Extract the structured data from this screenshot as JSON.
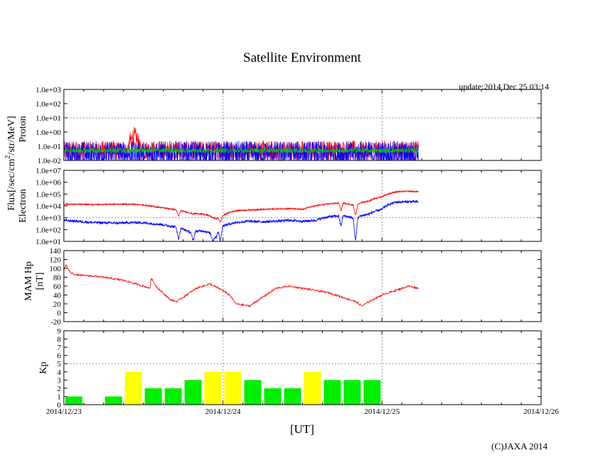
{
  "title": "Satellite Environment",
  "update": "update:2014 Dec 25 03:14",
  "copyright": "(C)JAXA 2014",
  "xlabel": "[UT]",
  "ylabels": {
    "flux_line1": "Flux[/sec/cm",
    "flux_sup": "2",
    "flux_line1b": "/str/MeV]",
    "proton": "Proton",
    "electron": "Electron",
    "mam_line1": "MAM Hp",
    "mam_line2": "[nT]",
    "kp": "Kp"
  },
  "chart_data": [
    {
      "name": "proton",
      "type": "line",
      "yscale": "log",
      "ylim": [
        0.01,
        1000
      ],
      "yticks": [
        "1.0e-02",
        "1.0e-01",
        "1.0e+00",
        "1.0e+01",
        "1.0e+02",
        "1.0e+03"
      ],
      "xlim_hours": [
        0,
        72
      ],
      "data_end_hours": 53.5,
      "grid": "dotted at 1.0e+01 and at each day boundary",
      "series": [
        {
          "name": "proton-red",
          "color": "#ff0000",
          "typical": 0.05,
          "note": "noisy; spike to ~0.5 near hour 10.5"
        },
        {
          "name": "proton-blue",
          "color": "#0000ff",
          "typical": 0.03
        },
        {
          "name": "proton-green",
          "color": "#00cc00",
          "typical": 0.05
        }
      ]
    },
    {
      "name": "electron",
      "type": "line",
      "yscale": "log",
      "ylim": [
        10,
        10000000
      ],
      "yticks": [
        "1.0e+01",
        "1.0e+02",
        "1.0e+03",
        "1.0e+04",
        "1.0e+05",
        "1.0e+06",
        "1.0e+07"
      ],
      "xlim_hours": [
        0,
        72
      ],
      "grid": "dotted at 1.0e+03 and at each day boundary",
      "series": [
        {
          "name": "electron-red",
          "color": "#ff0000",
          "x": [
            0,
            4,
            8,
            11,
            14,
            17,
            19,
            21,
            23,
            24,
            26,
            28,
            30,
            32,
            34,
            36,
            38,
            40,
            42,
            44,
            45,
            46,
            48,
            50,
            52,
            53.5
          ],
          "y": [
            14000,
            13000,
            14000,
            13500,
            8000,
            4500,
            2500,
            2000,
            800,
            1500,
            4000,
            4500,
            5000,
            5500,
            6000,
            5000,
            10000,
            15000,
            18000,
            10000,
            20000,
            25000,
            60000,
            150000,
            170000,
            160000
          ]
        },
        {
          "name": "electron-blue",
          "color": "#0000ff",
          "x": [
            0,
            4,
            8,
            11,
            14,
            17,
            19,
            21,
            23,
            24,
            26,
            28,
            30,
            32,
            34,
            36,
            38,
            40,
            42,
            44,
            45,
            46,
            48,
            50,
            52,
            53.5
          ],
          "y": [
            600,
            400,
            350,
            400,
            300,
            150,
            60,
            80,
            20,
            200,
            400,
            500,
            450,
            500,
            600,
            500,
            600,
            1200,
            1500,
            800,
            1500,
            2000,
            5000,
            20000,
            23000,
            22000
          ]
        }
      ],
      "dips": [
        {
          "x": 17.3,
          "red": 1200,
          "blue": 15
        },
        {
          "x": 19.5,
          "red": 2000,
          "blue": 10
        },
        {
          "x": 22.5,
          "red": 1000,
          "blue": 10
        },
        {
          "x": 23.6,
          "red": 400,
          "blue": 10
        },
        {
          "x": 41.8,
          "red": 4000,
          "blue": 200
        },
        {
          "x": 44.0,
          "red": 1500,
          "blue": 10
        }
      ]
    },
    {
      "name": "mam",
      "type": "line",
      "ylim": [
        -20,
        140
      ],
      "yticks": [
        -20,
        0,
        20,
        40,
        60,
        80,
        100,
        120,
        140
      ],
      "xlim_hours": [
        0,
        72
      ],
      "grid": "dotted at each day boundary",
      "series": [
        {
          "name": "mam-hp",
          "color": "#ff0000",
          "x": [
            0,
            0.3,
            1,
            2,
            5,
            9,
            12,
            13,
            13.2,
            14,
            16,
            17,
            18,
            20,
            22,
            24,
            25,
            26,
            28,
            30,
            32,
            34,
            36,
            38,
            40,
            41,
            42,
            43,
            44,
            45,
            46,
            48,
            50,
            52,
            53.5
          ],
          "y": [
            95,
            108,
            90,
            85,
            82,
            73,
            60,
            55,
            78,
            58,
            30,
            25,
            35,
            55,
            65,
            50,
            40,
            20,
            15,
            35,
            55,
            60,
            55,
            50,
            45,
            40,
            35,
            30,
            25,
            15,
            25,
            40,
            50,
            60,
            55
          ]
        }
      ]
    },
    {
      "name": "kp",
      "type": "bar",
      "ylim": [
        0,
        9
      ],
      "yticks": [
        0,
        1,
        2,
        3,
        4,
        5,
        6,
        7,
        8,
        9
      ],
      "grid": "dotted at 5 and at each day boundary",
      "bin_hours": 3,
      "values": [
        1,
        null,
        1,
        4,
        2,
        2,
        3,
        4,
        4,
        3,
        2,
        2,
        4,
        3,
        3,
        3
      ],
      "colors": {
        "low": "#00ee00",
        "mid": "#ffff00"
      },
      "color_rule": "Kp >= 4 yellow, else green"
    }
  ],
  "x_ticks": [
    "2014/12/23",
    "2014/12/24",
    "2014/12/25",
    "2014/12/26"
  ]
}
